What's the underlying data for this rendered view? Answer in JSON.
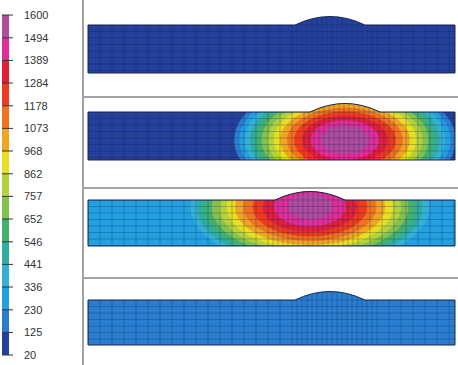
{
  "chart_data": {
    "type": "contour",
    "colorbar": {
      "ticks": [
        1600,
        1494,
        1389,
        1284,
        1178,
        1073,
        968,
        862,
        757,
        652,
        546,
        441,
        336,
        230,
        125,
        20
      ],
      "colors": [
        "#b04c9e",
        "#e02e9a",
        "#e0203c",
        "#f03a1e",
        "#f0741e",
        "#f0a422",
        "#e8de22",
        "#b4d23e",
        "#84c24e",
        "#44b06e",
        "#30ae9c",
        "#34b2d6",
        "#22a0e0",
        "#2a7ed0",
        "#24409c"
      ]
    },
    "panels": [
      {
        "background_temperature": 20,
        "peak_temperature": 20
      },
      {
        "background_temperature": 80,
        "peak_temperature": 1600
      },
      {
        "background_temperature": 280,
        "peak_temperature": 1560
      },
      {
        "background_temperature": 180,
        "peak_temperature": 180
      }
    ]
  }
}
